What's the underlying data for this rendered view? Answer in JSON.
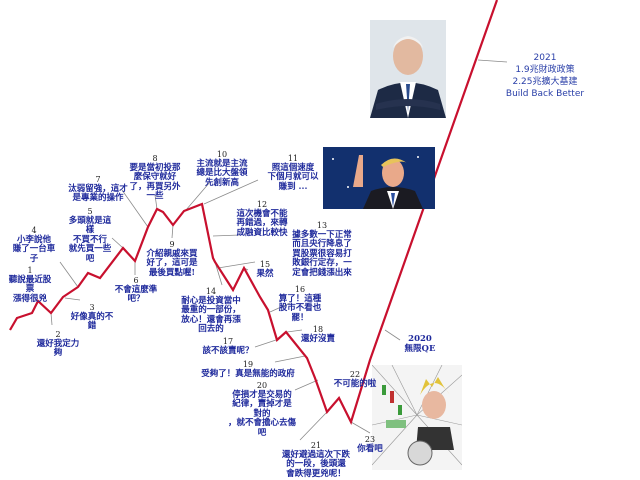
{
  "annotations": [
    {
      "num": "1",
      "lines": [
        "聽說最近股",
        "票",
        "漲得很兇"
      ]
    },
    {
      "num": "2",
      "lines": [
        "還好我定力",
        "夠"
      ]
    },
    {
      "num": "3",
      "lines": [
        "好像真的不",
        "錯"
      ]
    },
    {
      "num": "4",
      "lines": [
        "小李說他",
        "賺了一台車",
        "子"
      ]
    },
    {
      "num": "5",
      "lines": [
        "多頭就是這",
        "樣",
        "不買不行",
        "就先買一些",
        "吧"
      ]
    },
    {
      "num": "6",
      "lines": [
        "不會這麼準",
        "吧？"
      ]
    },
    {
      "num": "7",
      "lines": [
        "汰弱留強，這才",
        "是專業的操作"
      ]
    },
    {
      "num": "8",
      "lines": [
        "要是當初投那",
        "麼保守就好",
        "了，再買另外",
        "一些"
      ]
    },
    {
      "num": "9",
      "lines": [
        "介紹親戚來買",
        "好了，這可是",
        "最後買點喔!"
      ]
    },
    {
      "num": "10",
      "lines": [
        "主流就是主流",
        "總是比大盤領",
        "先創新高"
      ]
    },
    {
      "num": "11",
      "lines": [
        "照這個速度",
        "下個月就可以",
        "賺到 ..."
      ]
    },
    {
      "num": "12",
      "lines": [
        "這次機會不能",
        "再錯過，來轉",
        "成融資比較快"
      ]
    },
    {
      "num": "13",
      "lines": [
        "據多數一下正常",
        "而且央行降息了",
        "買股票很容易打",
        "敗銀行定存，一",
        "定會把錢漲出來"
      ]
    },
    {
      "num": "14",
      "lines": [
        "耐心是投資當中",
        "最重的一部份，",
        "放心！還會再漲",
        "回去的"
      ]
    },
    {
      "num": "15",
      "lines": [
        "果然"
      ]
    },
    {
      "num": "16",
      "lines": [
        "算了！這種",
        "股市不看也",
        "罷！"
      ]
    },
    {
      "num": "17",
      "lines": [
        "該不該賣呢？"
      ]
    },
    {
      "num": "18",
      "lines": [
        "還好沒賣"
      ]
    },
    {
      "num": "19",
      "lines": [
        "受夠了！真是無能的政府"
      ]
    },
    {
      "num": "20",
      "lines": [
        "停損才是交易的",
        "紀律，賣掉才是",
        "對的",
        "，就不會擔心去傷",
        "吧"
      ]
    },
    {
      "num": "21",
      "lines": [
        "還好避過這次下跌",
        "的一段，後頭還",
        "會跌得更兇呢！"
      ]
    },
    {
      "num": "22",
      "lines": [
        "不可能的啦"
      ]
    },
    {
      "num": "23",
      "lines": [
        "你看吧"
      ]
    }
  ],
  "events": {
    "qe2020": {
      "year": "2020",
      "lines": [
        "無限QE"
      ]
    },
    "bbb2021": {
      "year": "2021",
      "lines": [
        "1.9兆財政政策",
        "2.25兆擴大基建",
        "Build Back Better"
      ]
    }
  },
  "colors": {
    "line": "#c8102e",
    "text": "#1f2a9c",
    "leader": "#888888"
  },
  "images": [
    "biden-photo",
    "trump-photo",
    "money-meme-photo"
  ]
}
